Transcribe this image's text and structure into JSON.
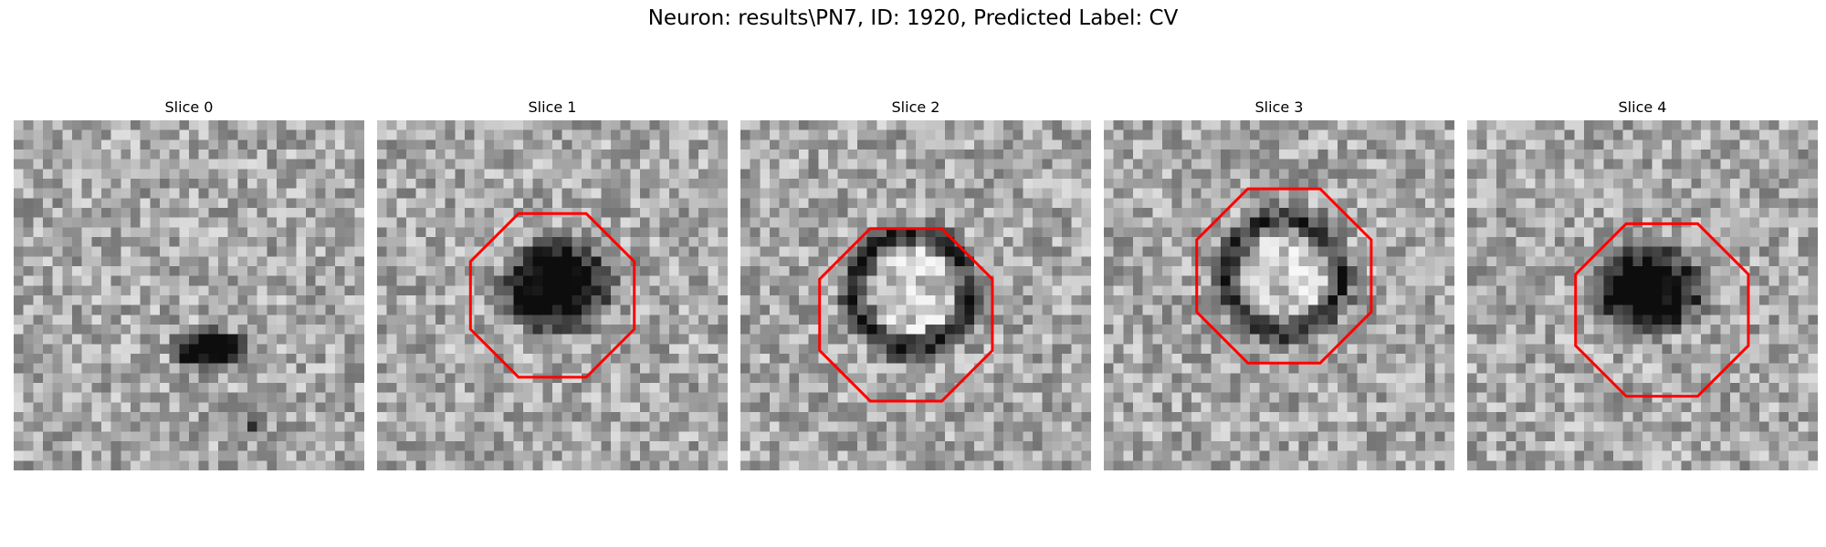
{
  "figure": {
    "title": "Neuron: results\\PN7, ID: 1920, Predicted Label: CV"
  },
  "contour_color": "#ff0000",
  "panels": [
    {
      "title": "Slice 0",
      "has_contour": false,
      "blobs": [
        {
          "cx": 20,
          "cy": 23.5,
          "rx": 3.8,
          "ry": 2.0,
          "depth": 0.85
        },
        {
          "cx": 25,
          "cy": 31,
          "rx": 1.5,
          "ry": 1.5,
          "depth": 0.35
        }
      ]
    },
    {
      "title": "Slice 1",
      "has_contour": true,
      "contour": {
        "cx": 18,
        "cy": 18,
        "r": 9.1
      },
      "blobs": [
        {
          "cx": 18.5,
          "cy": 17,
          "rx": 5.5,
          "ry": 4.8,
          "depth": 0.85
        }
      ]
    },
    {
      "title": "Slice 2",
      "has_contour": true,
      "contour": {
        "cx": 17,
        "cy": 20,
        "r": 9.6
      },
      "blobs": [
        {
          "cx": 17.5,
          "cy": 17.5,
          "rx": 7.0,
          "ry": 7.0,
          "depth": 0.55,
          "ring": true,
          "inner": 4.3
        }
      ]
    },
    {
      "title": "Slice 3",
      "has_contour": true,
      "contour": {
        "cx": 18.5,
        "cy": 16,
        "r": 9.7
      },
      "blobs": [
        {
          "cx": 18.5,
          "cy": 16,
          "rx": 7.0,
          "ry": 7.0,
          "depth": 0.5,
          "ring": true,
          "inner": 4.3
        }
      ]
    },
    {
      "title": "Slice 4",
      "has_contour": true,
      "contour": {
        "cx": 20,
        "cy": 19.5,
        "r": 9.6
      },
      "blobs": [
        {
          "cx": 18.5,
          "cy": 17.5,
          "rx": 6.0,
          "ry": 4.5,
          "depth": 0.8
        }
      ]
    }
  ]
}
